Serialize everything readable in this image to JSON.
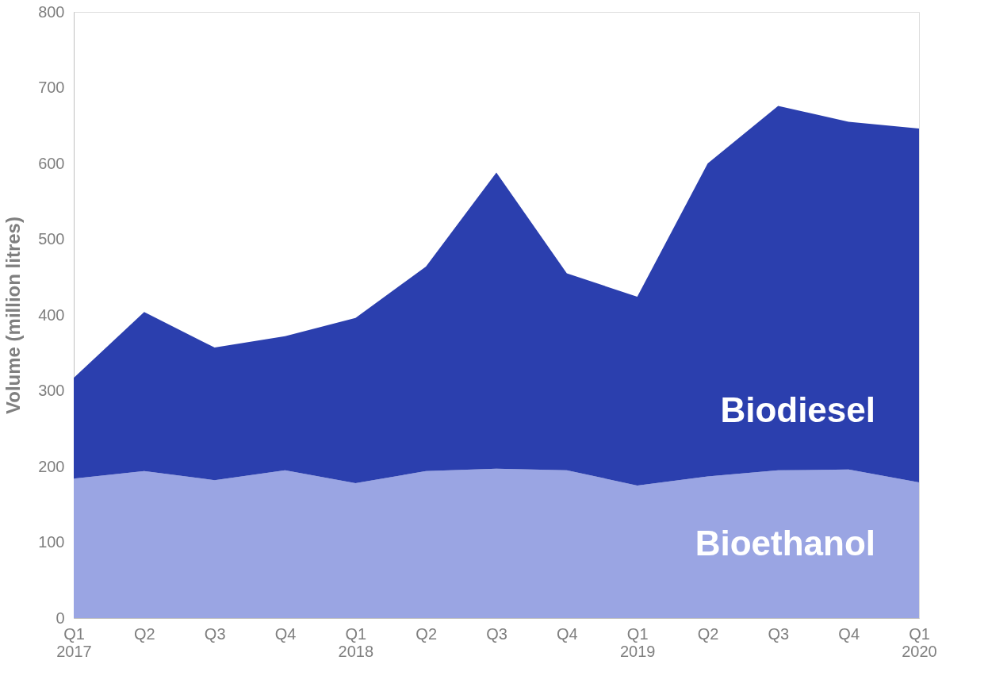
{
  "chart_data": {
    "type": "area",
    "ylabel": "Volume  (million litres)",
    "categories": [
      "Q1\n2017",
      "Q2",
      "Q3",
      "Q4",
      "Q1\n2018",
      "Q2",
      "Q3",
      "Q4",
      "Q1\n2019",
      "Q2",
      "Q3",
      "Q4",
      "Q1\n2020"
    ],
    "stacked": true,
    "series": [
      {
        "name": "Bioethanol",
        "color": "#9aa5e3",
        "values": [
          184,
          194,
          182,
          195,
          178,
          194,
          197,
          195,
          175,
          187,
          195,
          196,
          179
        ]
      },
      {
        "name": "Biodiesel",
        "color": "#2b3fae",
        "values": [
          133,
          210,
          175,
          177,
          218,
          270,
          391,
          260,
          249,
          413,
          481,
          459,
          467
        ]
      }
    ],
    "ylim": [
      0,
      800
    ],
    "yticks": [
      0,
      100,
      200,
      300,
      400,
      500,
      600,
      700,
      800
    ],
    "grid": false,
    "legend": false
  }
}
